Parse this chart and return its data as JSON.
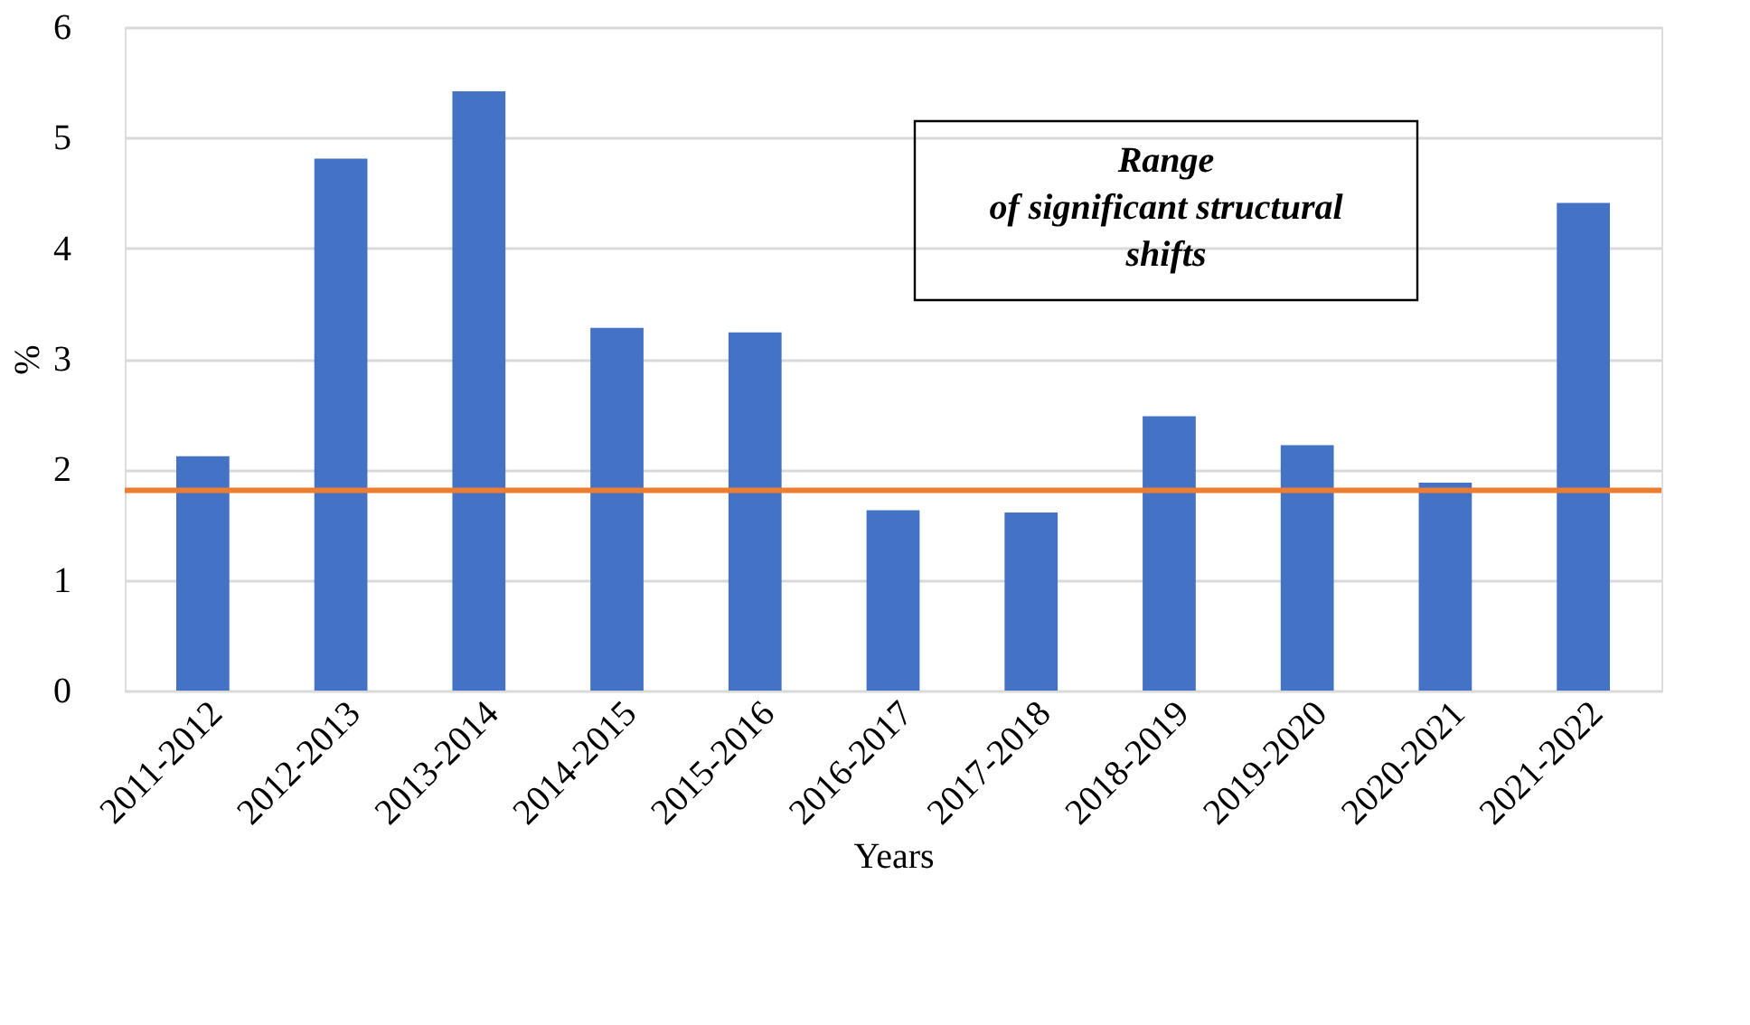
{
  "chart_data": {
    "type": "bar",
    "xlabel": "Years",
    "ylabel": "%",
    "categories": [
      "2011-2012",
      "2012-2013",
      "2013-2014",
      "2014-2015",
      "2015-2016",
      "2016-2017",
      "2017-2018",
      "2018-2019",
      "2019-2020",
      "2020-2021",
      "2021-2022"
    ],
    "values": [
      2.12,
      4.81,
      5.42,
      3.28,
      3.24,
      1.63,
      1.61,
      2.48,
      2.22,
      1.88,
      4.41
    ],
    "color": "#4472c4",
    "ylim": [
      0,
      6
    ],
    "yticks": [
      0,
      1,
      2,
      3,
      4,
      5,
      6
    ],
    "grid": "y",
    "ref_lines": [
      {
        "axis": "y",
        "value": 1.81,
        "label": null,
        "color": "#ed7d31"
      }
    ],
    "annotations": [
      "Range\nof significant structural\nshifts"
    ]
  }
}
